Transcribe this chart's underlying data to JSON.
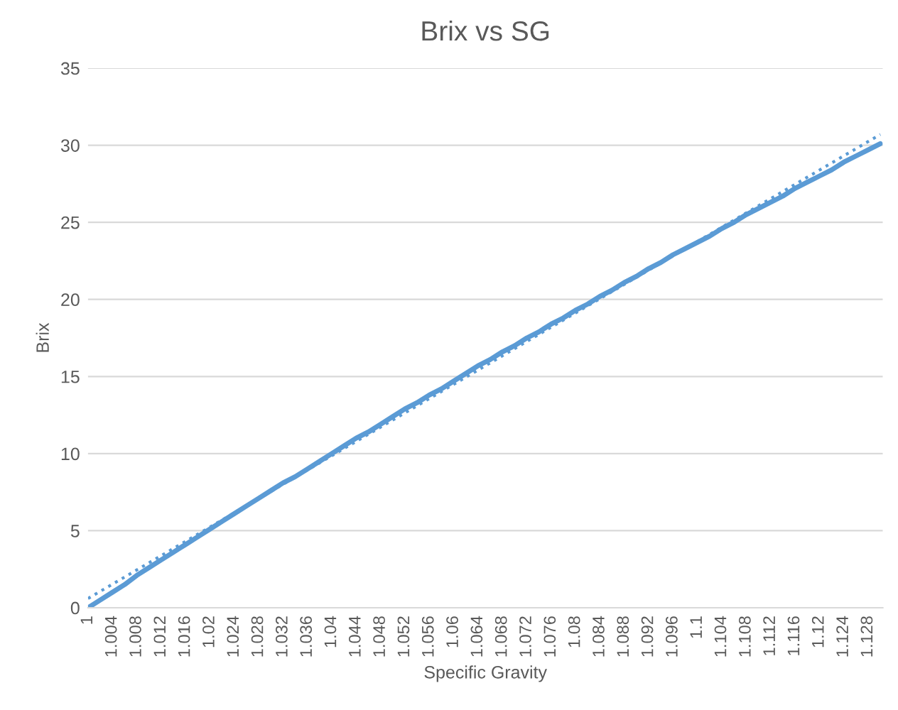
{
  "chart_data": {
    "type": "line",
    "title": "Brix vs SG",
    "xlabel": "Specific Gravity",
    "ylabel": "Brix",
    "categories": [
      "1",
      null,
      "1.004",
      null,
      "1.008",
      null,
      "1.012",
      null,
      "1.016",
      null,
      "1.02",
      null,
      "1.024",
      null,
      "1.028",
      null,
      "1.032",
      null,
      "1.036",
      null,
      "1.04",
      null,
      "1.044",
      null,
      "1.048",
      null,
      "1.052",
      null,
      "1.056",
      null,
      "1.06",
      null,
      "1.064",
      null,
      "1.068",
      null,
      "1.072",
      null,
      "1.076",
      null,
      "1.08",
      null,
      "1.084",
      null,
      "1.088",
      null,
      "1.092",
      null,
      "1.096",
      null,
      "1.1",
      null,
      "1.104",
      null,
      "1.108",
      null,
      "1.112",
      null,
      "1.116",
      null,
      "1.12",
      null,
      "1.124",
      null,
      "1.128",
      null
    ],
    "series": [
      {
        "color": "#5b9bd5",
        "line_style": "solid",
        "values": [
          0.0,
          0.5,
          1.0,
          1.5,
          2.1,
          2.6,
          3.1,
          3.6,
          4.1,
          4.6,
          5.1,
          5.6,
          6.1,
          6.6,
          7.1,
          7.6,
          8.1,
          8.5,
          9.0,
          9.5,
          10.0,
          10.5,
          11.0,
          11.4,
          11.9,
          12.4,
          12.9,
          13.3,
          13.8,
          14.2,
          14.7,
          15.2,
          15.7,
          16.1,
          16.6,
          17.0,
          17.5,
          17.9,
          18.4,
          18.8,
          19.3,
          19.7,
          20.2,
          20.6,
          21.1,
          21.5,
          22.0,
          22.4,
          22.9,
          23.3,
          23.7,
          24.1,
          24.6,
          25.0,
          25.5,
          25.9,
          26.3,
          26.7,
          27.2,
          27.6,
          28.0,
          28.4,
          28.9,
          29.3,
          29.7,
          30.1
        ]
      },
      {
        "color": "#5b9bd5",
        "line_style": "dotted",
        "values": [
          0.6,
          null,
          null,
          null,
          null,
          null,
          null,
          null,
          null,
          null,
          null,
          null,
          null,
          null,
          null,
          null,
          null,
          null,
          null,
          null,
          null,
          null,
          null,
          null,
          null,
          null,
          null,
          null,
          null,
          null,
          null,
          null,
          null,
          null,
          null,
          null,
          null,
          null,
          null,
          null,
          null,
          null,
          null,
          null,
          null,
          null,
          null,
          null,
          null,
          null,
          null,
          null,
          null,
          null,
          null,
          null,
          null,
          null,
          null,
          null,
          null,
          null,
          null,
          null,
          null,
          30.7
        ]
      }
    ],
    "ylim": [
      0,
      35
    ],
    "yticks": [
      0,
      5,
      10,
      15,
      20,
      25,
      30,
      35
    ],
    "grid": "y",
    "legend": false
  }
}
